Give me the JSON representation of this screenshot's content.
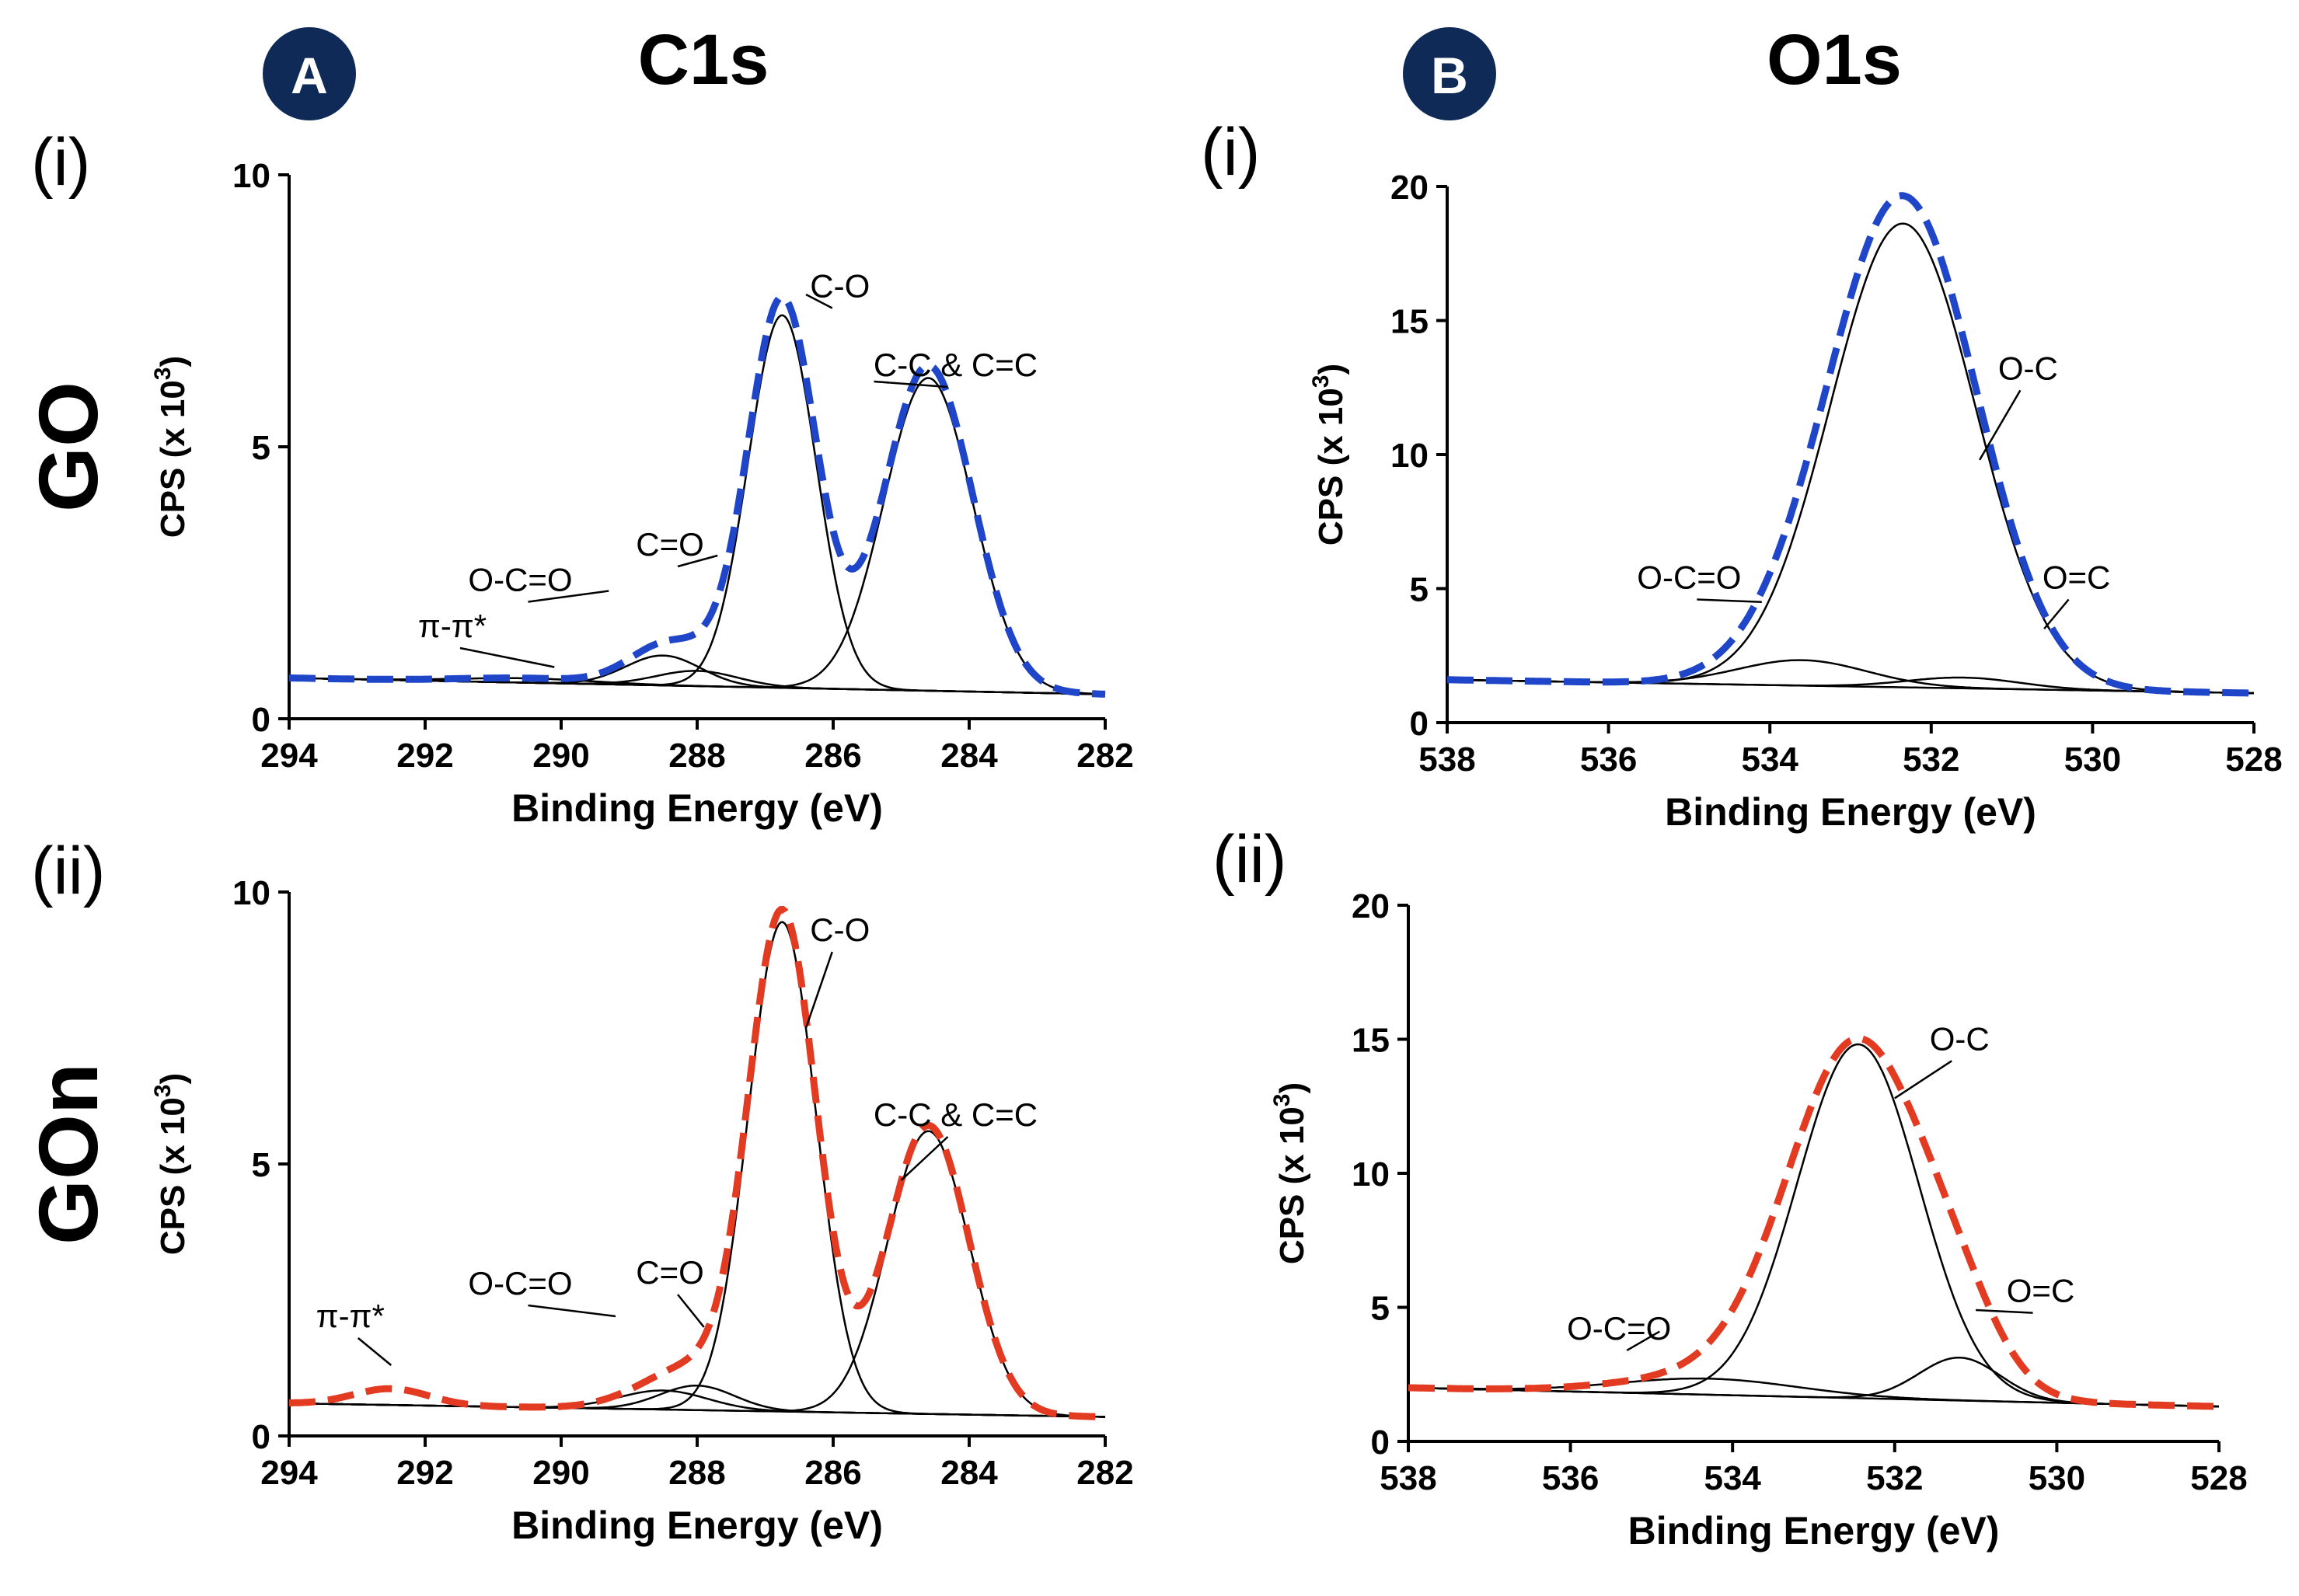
{
  "figure": {
    "column_a": {
      "badge": "A",
      "title": "C1s"
    },
    "column_b": {
      "badge": "B",
      "title": "O1s"
    },
    "row_labels": [
      "GO",
      "GOn"
    ],
    "panel_labels": {
      "row1": "(i)",
      "row2": "(ii)"
    },
    "colors": {
      "blue": "#1f45c8",
      "red": "#e33a22",
      "badge": "#102a57",
      "line": "#000000"
    }
  },
  "chart_data": [
    {
      "id": "c1s_go",
      "type": "line",
      "column": "A",
      "row": "GO",
      "panel": "(i)",
      "xlabel": "Binding Energy (eV)",
      "ylabel_prefix": "CPS (x 10",
      "ylabel_sup": "3",
      "ylabel_suffix": ")",
      "xlim": [
        294,
        282
      ],
      "ylim": [
        0,
        10
      ],
      "xticks": [
        294,
        292,
        290,
        288,
        286,
        284,
        282
      ],
      "yticks": [
        0,
        5,
        10
      ],
      "baseline": {
        "left": 0.75,
        "right": 0.45
      },
      "components": [
        {
          "name": "C-C & C=C",
          "center": 284.6,
          "height": 5.75,
          "sigma": 0.65,
          "label_at": [
            285.4,
            6.2
          ]
        },
        {
          "name": "C-O",
          "center": 286.75,
          "height": 6.85,
          "sigma": 0.5,
          "label_at": [
            286.4,
            7.8
          ]
        },
        {
          "name": "C=O",
          "center": 288.0,
          "height": 0.28,
          "sigma": 0.6,
          "label_at": [
            287.7,
            3.0
          ]
        },
        {
          "name": "O-C=O",
          "center": 288.5,
          "height": 0.55,
          "sigma": 0.55,
          "label_at": [
            289.3,
            2.35
          ]
        },
        {
          "name": "π-π*",
          "center": 290.5,
          "height": 0.08,
          "sigma": 1.0,
          "label_at": [
            290.1,
            0.95
          ]
        }
      ],
      "envelope": {
        "color": "#1f45c8",
        "scale": 1.04
      },
      "annotations": [
        {
          "text": "C-C & C=C",
          "x": 284.2,
          "y": 6.3
        },
        {
          "text": "C-O",
          "x": 285.9,
          "y": 7.75
        },
        {
          "text": "C=O",
          "x": 288.4,
          "y": 3.0
        },
        {
          "text": "O-C=O",
          "x": 290.6,
          "y": 2.35
        },
        {
          "text": "π-π*",
          "x": 291.6,
          "y": 1.5
        }
      ]
    },
    {
      "id": "o1s_go",
      "type": "line",
      "column": "B",
      "row": "GO",
      "panel": "(i)",
      "xlabel": "Binding Energy (eV)",
      "ylabel_prefix": "CPS (x 10",
      "ylabel_sup": "3",
      "ylabel_suffix": ")",
      "xlim": [
        538,
        528
      ],
      "ylim": [
        0,
        20
      ],
      "xticks": [
        538,
        536,
        534,
        532,
        530,
        528
      ],
      "yticks": [
        0,
        5,
        10,
        15,
        20
      ],
      "baseline": {
        "left": 1.6,
        "right": 1.1
      },
      "components": [
        {
          "name": "O-C",
          "center": 532.35,
          "height": 17.3,
          "sigma": 0.9,
          "label_at": [
            531.4,
            9.8
          ]
        },
        {
          "name": "O-C=O",
          "center": 533.6,
          "height": 0.95,
          "sigma": 0.8,
          "label_at": [
            534.1,
            4.5
          ]
        },
        {
          "name": "O=C",
          "center": 531.6,
          "height": 0.4,
          "sigma": 0.7,
          "label_at": [
            530.6,
            3.5
          ]
        }
      ],
      "envelope": {
        "color": "#1f45c8",
        "scale": 1.03
      },
      "annotations": [
        {
          "text": "O-C",
          "x": 530.8,
          "y": 12.8
        },
        {
          "text": "O-C=O",
          "x": 535.0,
          "y": 5.0
        },
        {
          "text": "O=C",
          "x": 530.2,
          "y": 5.0
        }
      ]
    },
    {
      "id": "c1s_gon",
      "type": "line",
      "column": "A",
      "row": "GOn",
      "panel": "(ii)",
      "xlabel": "Binding Energy (eV)",
      "ylabel_prefix": "CPS (x 10",
      "ylabel_sup": "3",
      "ylabel_suffix": ")",
      "xlim": [
        294,
        282
      ],
      "ylim": [
        0,
        10
      ],
      "xticks": [
        294,
        292,
        290,
        288,
        286,
        284,
        282
      ],
      "yticks": [
        0,
        5,
        10
      ],
      "baseline": {
        "left": 0.6,
        "right": 0.35
      },
      "components": [
        {
          "name": "C-C & C=C",
          "center": 284.6,
          "height": 5.2,
          "sigma": 0.6,
          "label_at": [
            285.0,
            4.7
          ]
        },
        {
          "name": "C-O",
          "center": 286.75,
          "height": 9.0,
          "sigma": 0.5,
          "label_at": [
            286.4,
            7.5
          ]
        },
        {
          "name": "C=O",
          "center": 288.0,
          "height": 0.45,
          "sigma": 0.55,
          "label_at": [
            287.9,
            2.0
          ]
        },
        {
          "name": "O-C=O",
          "center": 288.5,
          "height": 0.35,
          "sigma": 0.65,
          "label_at": [
            289.2,
            2.2
          ]
        },
        {
          "name": "π-π*",
          "center": 292.5,
          "height": 0.0,
          "sigma": 0.6,
          "label_at": [
            292.5,
            1.3
          ]
        }
      ],
      "envelope": {
        "color": "#e33a22",
        "scale": 1.02,
        "extra": [
          {
            "center": 292.5,
            "height": 0.3,
            "sigma": 0.55
          }
        ]
      },
      "annotations": [
        {
          "text": "C-C & C=C",
          "x": 284.2,
          "y": 5.7
        },
        {
          "text": "C-O",
          "x": 285.9,
          "y": 9.1
        },
        {
          "text": "C=O",
          "x": 288.4,
          "y": 2.8
        },
        {
          "text": "O-C=O",
          "x": 290.6,
          "y": 2.6
        },
        {
          "text": "π-π*",
          "x": 293.1,
          "y": 2.0
        }
      ]
    },
    {
      "id": "o1s_gon",
      "type": "line",
      "column": "B",
      "row": "GOn",
      "panel": "(ii)",
      "xlabel": "Binding Energy (eV)",
      "ylabel_prefix": "CPS (x 10",
      "ylabel_sup": "3",
      "ylabel_suffix": ")",
      "xlim": [
        538,
        528
      ],
      "ylim": [
        0,
        20
      ],
      "xticks": [
        538,
        536,
        534,
        532,
        530,
        528
      ],
      "yticks": [
        0,
        5,
        10,
        15,
        20
      ],
      "baseline": {
        "left": 2.0,
        "right": 1.3
      },
      "components": [
        {
          "name": "O-C",
          "center": 532.45,
          "height": 13.2,
          "sigma": 0.75,
          "label_at": [
            532.0,
            12.8
          ]
        },
        {
          "name": "O-C=O",
          "center": 534.3,
          "height": 0.6,
          "sigma": 1.1,
          "label_at": [
            534.9,
            4.1
          ]
        },
        {
          "name": "O=C",
          "center": 531.2,
          "height": 1.6,
          "sigma": 0.5,
          "label_at": [
            531.0,
            4.9
          ]
        }
      ],
      "envelope": {
        "color": "#e33a22",
        "scale": 1.0,
        "wide": 1.15
      },
      "annotations": [
        {
          "text": "O-C",
          "x": 531.2,
          "y": 14.6
        },
        {
          "text": "O-C=O",
          "x": 535.4,
          "y": 3.8
        },
        {
          "text": "O=C",
          "x": 530.2,
          "y": 5.2
        }
      ]
    }
  ]
}
